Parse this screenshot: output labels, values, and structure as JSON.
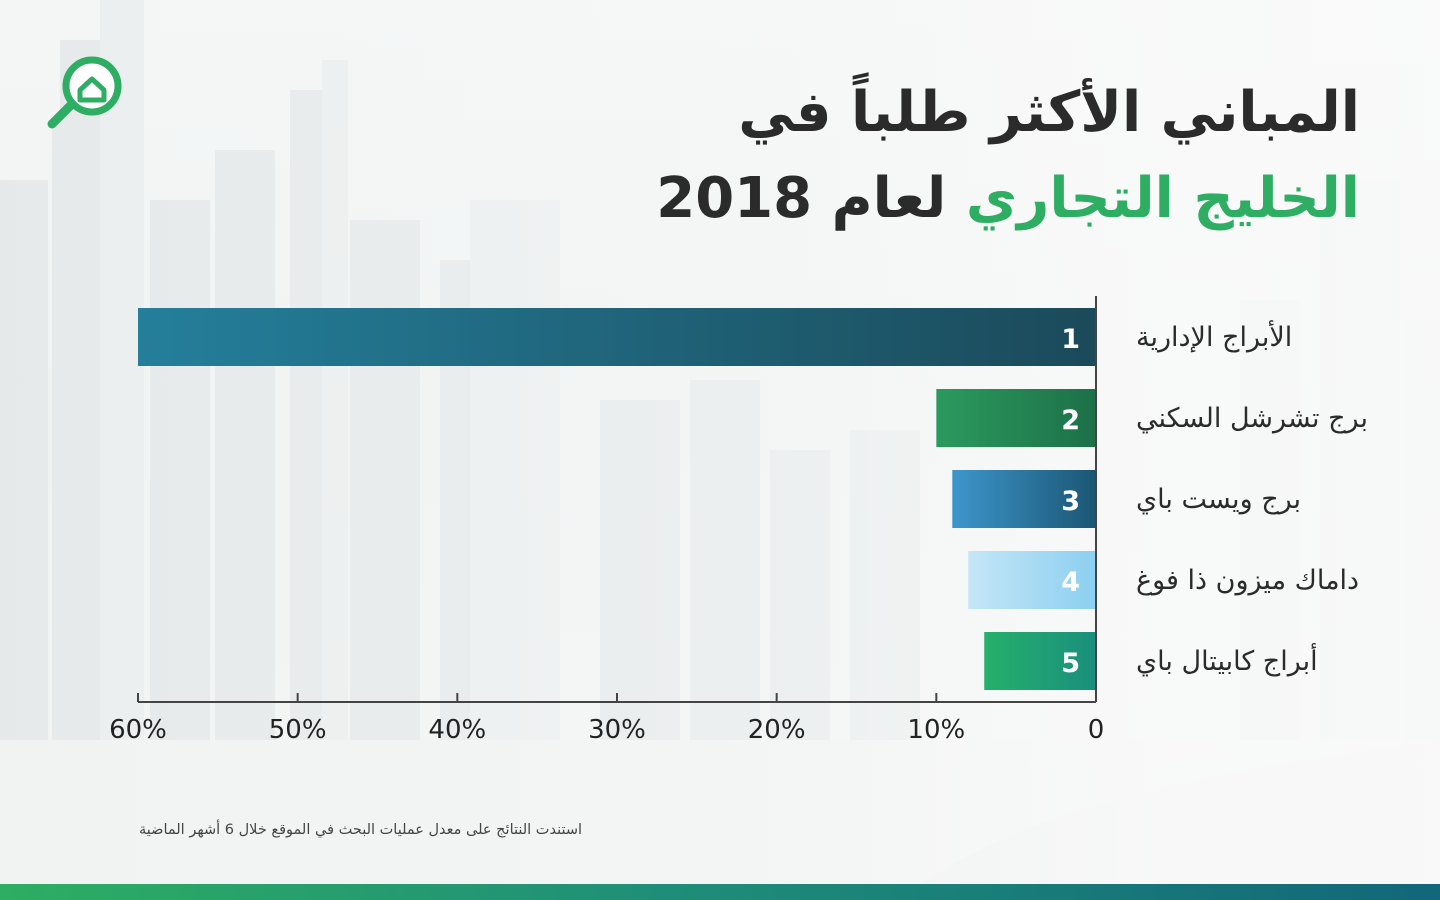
{
  "title": {
    "line1": "المباني الأكثر طلباً في",
    "line2_accent": "الخليج التجاري",
    "line2_rest": "لعام 2018"
  },
  "chart_data": {
    "type": "bar",
    "orientation": "horizontal",
    "x_direction": "right-to-left",
    "categories": [
      "الأبراج الإدارية",
      "برج تشرشل السكني",
      "برج ويست باي",
      "داماك ميزون ذا فوغ",
      "أبراج كابيتال باي"
    ],
    "ranks": [
      "1",
      "2",
      "3",
      "4",
      "5"
    ],
    "values": [
      60,
      10,
      9,
      8,
      7
    ],
    "xlim": [
      0,
      60
    ],
    "x_ticks": [
      0,
      10,
      20,
      30,
      40,
      50,
      60
    ],
    "x_tick_labels": [
      "0",
      "10%",
      "20%",
      "30%",
      "40%",
      "50%",
      "60%"
    ],
    "grid": false,
    "bar_colors": [
      [
        "#247f9b",
        "#1b4a5a"
      ],
      [
        "#2b9a5e",
        "#1d7048"
      ],
      [
        "#3d96cc",
        "#1b5673"
      ],
      [
        "#c5e6f7",
        "#8ccff0"
      ],
      [
        "#25b06b",
        "#1a8f7d"
      ]
    ]
  },
  "footnote": "استندت النتائج على معدل عمليات البحث في الموقع خلال 6 أشهر الماضية",
  "colors": {
    "accent_green": "#2dae62",
    "title_text": "#2b2b2b"
  },
  "icons": [
    "house-magnifier-logo-icon"
  ]
}
